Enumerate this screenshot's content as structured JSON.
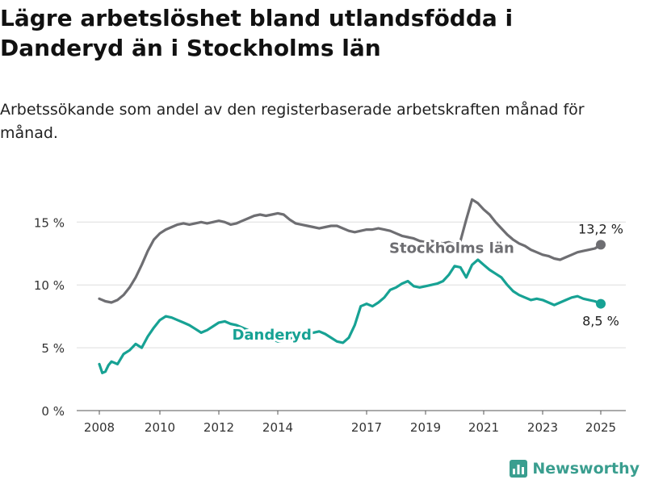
{
  "title": "Lägre arbetslöshet bland utlandsfödda i Danderyd än i Stockholms län",
  "subtitle": "Arbetssökande som andel av den registerbaserade arbetskraften månad för månad.",
  "brand": {
    "name": "Newsworthy",
    "icon": "bar-chart-logo-icon",
    "color": "#3a9e8f"
  },
  "chart_data": {
    "type": "line",
    "title": "",
    "xlabel": "",
    "ylabel": "",
    "xlim": [
      2008,
      2025.4
    ],
    "ylim": [
      0,
      17
    ],
    "yticks": [
      0,
      5,
      10,
      15
    ],
    "ytick_labels": [
      "0 %",
      "5 %",
      "10 %",
      "15 %"
    ],
    "xticks": [
      2008,
      2010,
      2012,
      2014,
      2017,
      2019,
      2021,
      2023,
      2025
    ],
    "xtick_labels": [
      "2008",
      "2010",
      "2012",
      "2014",
      "2017",
      "2019",
      "2021",
      "2023",
      "2025"
    ],
    "grid": "horizontal",
    "legend": "none",
    "series": [
      {
        "name": "Stockholms län",
        "color": "#6e6e72",
        "end_label": "13,2 %",
        "points": [
          [
            2008.0,
            8.9
          ],
          [
            2008.2,
            8.7
          ],
          [
            2008.4,
            8.6
          ],
          [
            2008.6,
            8.8
          ],
          [
            2008.8,
            9.2
          ],
          [
            2009.0,
            9.8
          ],
          [
            2009.2,
            10.6
          ],
          [
            2009.4,
            11.6
          ],
          [
            2009.6,
            12.7
          ],
          [
            2009.8,
            13.6
          ],
          [
            2010.0,
            14.1
          ],
          [
            2010.2,
            14.4
          ],
          [
            2010.4,
            14.6
          ],
          [
            2010.6,
            14.8
          ],
          [
            2010.8,
            14.9
          ],
          [
            2011.0,
            14.8
          ],
          [
            2011.2,
            14.9
          ],
          [
            2011.4,
            15.0
          ],
          [
            2011.6,
            14.9
          ],
          [
            2011.8,
            15.0
          ],
          [
            2012.0,
            15.1
          ],
          [
            2012.2,
            15.0
          ],
          [
            2012.4,
            14.8
          ],
          [
            2012.6,
            14.9
          ],
          [
            2012.8,
            15.1
          ],
          [
            2013.0,
            15.3
          ],
          [
            2013.2,
            15.5
          ],
          [
            2013.4,
            15.6
          ],
          [
            2013.6,
            15.5
          ],
          [
            2013.8,
            15.6
          ],
          [
            2014.0,
            15.7
          ],
          [
            2014.2,
            15.6
          ],
          [
            2014.4,
            15.2
          ],
          [
            2014.6,
            14.9
          ],
          [
            2014.8,
            14.8
          ],
          [
            2015.0,
            14.7
          ],
          [
            2015.2,
            14.6
          ],
          [
            2015.4,
            14.5
          ],
          [
            2015.6,
            14.6
          ],
          [
            2015.8,
            14.7
          ],
          [
            2016.0,
            14.7
          ],
          [
            2016.2,
            14.5
          ],
          [
            2016.4,
            14.3
          ],
          [
            2016.6,
            14.2
          ],
          [
            2016.8,
            14.3
          ],
          [
            2017.0,
            14.4
          ],
          [
            2017.2,
            14.4
          ],
          [
            2017.4,
            14.5
          ],
          [
            2017.6,
            14.4
          ],
          [
            2017.8,
            14.3
          ],
          [
            2018.0,
            14.1
          ],
          [
            2018.2,
            13.9
          ],
          [
            2018.4,
            13.8
          ],
          [
            2018.6,
            13.7
          ],
          [
            2018.8,
            13.5
          ],
          [
            2019.0,
            13.4
          ],
          [
            2019.2,
            13.5
          ],
          [
            2019.4,
            13.4
          ],
          [
            2019.6,
            13.3
          ],
          [
            2019.8,
            13.4
          ],
          [
            2020.0,
            13.2
          ],
          [
            2020.2,
            13.5
          ],
          [
            2020.4,
            15.2
          ],
          [
            2020.6,
            16.8
          ],
          [
            2020.8,
            16.5
          ],
          [
            2021.0,
            16.0
          ],
          [
            2021.2,
            15.6
          ],
          [
            2021.4,
            15.0
          ],
          [
            2021.6,
            14.5
          ],
          [
            2021.8,
            14.0
          ],
          [
            2022.0,
            13.6
          ],
          [
            2022.2,
            13.3
          ],
          [
            2022.4,
            13.1
          ],
          [
            2022.6,
            12.8
          ],
          [
            2022.8,
            12.6
          ],
          [
            2023.0,
            12.4
          ],
          [
            2023.2,
            12.3
          ],
          [
            2023.4,
            12.1
          ],
          [
            2023.6,
            12.0
          ],
          [
            2023.8,
            12.2
          ],
          [
            2024.0,
            12.4
          ],
          [
            2024.2,
            12.6
          ],
          [
            2024.4,
            12.7
          ],
          [
            2024.6,
            12.8
          ],
          [
            2024.8,
            12.9
          ],
          [
            2025.0,
            13.2
          ]
        ]
      },
      {
        "name": "Danderyd",
        "color": "#17a294",
        "end_label": "8,5 %",
        "points": [
          [
            2008.0,
            3.7
          ],
          [
            2008.1,
            3.0
          ],
          [
            2008.2,
            3.1
          ],
          [
            2008.3,
            3.6
          ],
          [
            2008.4,
            3.9
          ],
          [
            2008.6,
            3.7
          ],
          [
            2008.8,
            4.5
          ],
          [
            2009.0,
            4.8
          ],
          [
            2009.2,
            5.3
          ],
          [
            2009.4,
            5.0
          ],
          [
            2009.6,
            5.9
          ],
          [
            2009.8,
            6.6
          ],
          [
            2010.0,
            7.2
          ],
          [
            2010.2,
            7.5
          ],
          [
            2010.4,
            7.4
          ],
          [
            2010.6,
            7.2
          ],
          [
            2010.8,
            7.0
          ],
          [
            2011.0,
            6.8
          ],
          [
            2011.2,
            6.5
          ],
          [
            2011.4,
            6.2
          ],
          [
            2011.6,
            6.4
          ],
          [
            2011.8,
            6.7
          ],
          [
            2012.0,
            7.0
          ],
          [
            2012.2,
            7.1
          ],
          [
            2012.4,
            6.9
          ],
          [
            2012.6,
            6.8
          ],
          [
            2012.8,
            6.6
          ],
          [
            2013.0,
            6.4
          ],
          [
            2013.2,
            6.2
          ],
          [
            2013.4,
            6.0
          ],
          [
            2013.6,
            5.9
          ],
          [
            2013.8,
            5.7
          ],
          [
            2014.0,
            5.5
          ],
          [
            2014.2,
            5.6
          ],
          [
            2014.4,
            5.7
          ],
          [
            2014.6,
            5.9
          ],
          [
            2014.8,
            6.0
          ],
          [
            2015.0,
            6.1
          ],
          [
            2015.2,
            6.2
          ],
          [
            2015.4,
            6.3
          ],
          [
            2015.6,
            6.1
          ],
          [
            2015.8,
            5.8
          ],
          [
            2016.0,
            5.5
          ],
          [
            2016.2,
            5.4
          ],
          [
            2016.4,
            5.8
          ],
          [
            2016.6,
            6.8
          ],
          [
            2016.8,
            8.3
          ],
          [
            2017.0,
            8.5
          ],
          [
            2017.2,
            8.3
          ],
          [
            2017.4,
            8.6
          ],
          [
            2017.6,
            9.0
          ],
          [
            2017.8,
            9.6
          ],
          [
            2018.0,
            9.8
          ],
          [
            2018.2,
            10.1
          ],
          [
            2018.4,
            10.3
          ],
          [
            2018.6,
            9.9
          ],
          [
            2018.8,
            9.8
          ],
          [
            2019.0,
            9.9
          ],
          [
            2019.2,
            10.0
          ],
          [
            2019.4,
            10.1
          ],
          [
            2019.6,
            10.3
          ],
          [
            2019.8,
            10.8
          ],
          [
            2020.0,
            11.5
          ],
          [
            2020.2,
            11.4
          ],
          [
            2020.4,
            10.6
          ],
          [
            2020.6,
            11.6
          ],
          [
            2020.8,
            12.0
          ],
          [
            2021.0,
            11.6
          ],
          [
            2021.2,
            11.2
          ],
          [
            2021.4,
            10.9
          ],
          [
            2021.6,
            10.6
          ],
          [
            2021.8,
            10.0
          ],
          [
            2022.0,
            9.5
          ],
          [
            2022.2,
            9.2
          ],
          [
            2022.4,
            9.0
          ],
          [
            2022.6,
            8.8
          ],
          [
            2022.8,
            8.9
          ],
          [
            2023.0,
            8.8
          ],
          [
            2023.2,
            8.6
          ],
          [
            2023.4,
            8.4
          ],
          [
            2023.6,
            8.6
          ],
          [
            2023.8,
            8.8
          ],
          [
            2024.0,
            9.0
          ],
          [
            2024.2,
            9.1
          ],
          [
            2024.4,
            8.9
          ],
          [
            2024.6,
            8.8
          ],
          [
            2024.8,
            8.7
          ],
          [
            2025.0,
            8.5
          ]
        ]
      }
    ],
    "annotations": [
      {
        "series": "Stockholms län",
        "text": "Stockholms län",
        "at": [
          2019.9,
          13.0
        ]
      },
      {
        "series": "Danderyd",
        "text": "Danderyd",
        "at": [
          2013.8,
          6.1
        ]
      }
    ]
  }
}
